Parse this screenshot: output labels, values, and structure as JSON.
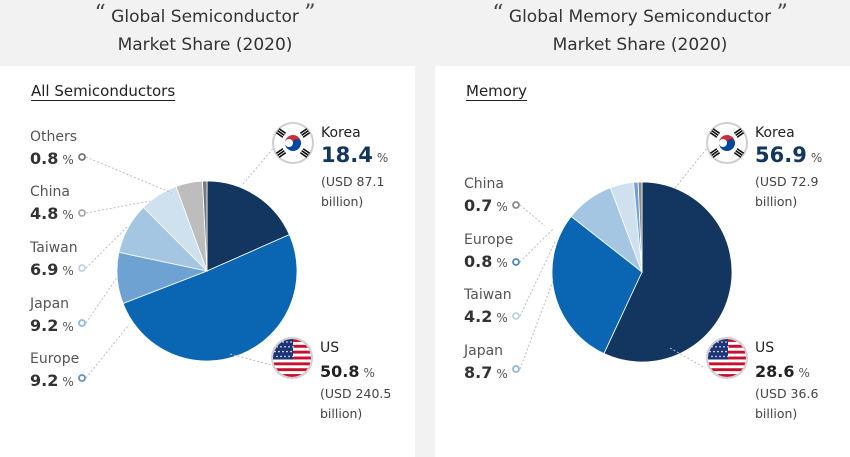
{
  "titles": {
    "left": {
      "line1": "Global Semiconductor",
      "line2": "Market Share (2020)"
    },
    "right": {
      "line1": "Global Memory Semiconductor",
      "line2": "Market Share (2020)"
    },
    "quote_open": "“",
    "quote_close": "”"
  },
  "unit": "%",
  "colors": {
    "korea": "#12365f",
    "us": "#0a66b3",
    "japan": "#6ea2d2",
    "taiwan": "#a4c6e3",
    "china": "#cfe0ef",
    "europe": "#bdbdbd",
    "others": "#7a7a7a",
    "memory_europe": "#6ea2d2",
    "memory_china": "#8a8a8a"
  },
  "chart_data": [
    {
      "type": "pie",
      "label": "All Semiconductors",
      "slices": [
        {
          "name": "Korea",
          "value": 18.4,
          "value_text": "18.4",
          "usd_line1": "(USD 87.1",
          "usd_line2": "billion)",
          "flag": "korea-flag-icon"
        },
        {
          "name": "US",
          "value": 50.8,
          "value_text": "50.8",
          "usd_line1": "(USD 240.5",
          "usd_line2": "billion)",
          "flag": "us-flag-icon"
        },
        {
          "name": "Europe",
          "value": 9.2,
          "value_text": "9.2"
        },
        {
          "name": "Japan",
          "value": 9.2,
          "value_text": "9.2"
        },
        {
          "name": "Taiwan",
          "value": 6.9,
          "value_text": "6.9"
        },
        {
          "name": "China",
          "value": 4.8,
          "value_text": "4.8"
        },
        {
          "name": "Others",
          "value": 0.8,
          "value_text": "0.8"
        }
      ]
    },
    {
      "type": "pie",
      "label": "Memory",
      "slices": [
        {
          "name": "Korea",
          "value": 56.9,
          "value_text": "56.9",
          "usd_line1": "(USD 72.9",
          "usd_line2": "billion)",
          "flag": "korea-flag-icon"
        },
        {
          "name": "US",
          "value": 28.6,
          "value_text": "28.6",
          "usd_line1": "(USD 36.6",
          "usd_line2": "billion)",
          "flag": "us-flag-icon"
        },
        {
          "name": "Japan",
          "value": 8.7,
          "value_text": "8.7"
        },
        {
          "name": "Taiwan",
          "value": 4.2,
          "value_text": "4.2"
        },
        {
          "name": "Europe",
          "value": 0.8,
          "value_text": "0.8"
        },
        {
          "name": "China",
          "value": 0.7,
          "value_text": "0.7"
        }
      ]
    }
  ]
}
